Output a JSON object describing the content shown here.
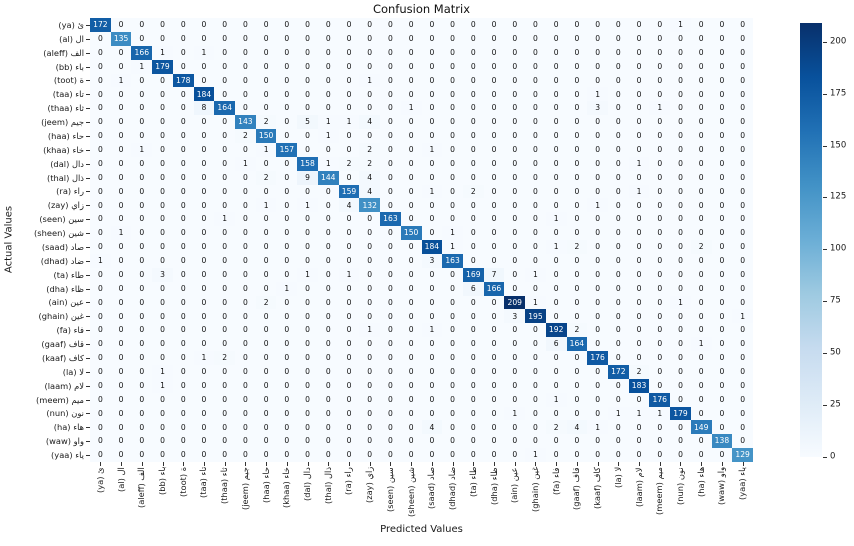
{
  "title": "Confusion Matrix",
  "xlabel": "Predicted Values",
  "ylabel": "Actual Values",
  "chart_data": {
    "type": "heatmap",
    "title": "Confusion Matrix",
    "xlabel": "Predicted Values",
    "ylabel": "Actual Values",
    "colormap": "Blues",
    "vmin": 0,
    "vmax": 209,
    "grid": false,
    "legend_position": "right-colorbar",
    "colorbar_ticks": [
      0,
      25,
      50,
      75,
      100,
      125,
      150,
      175,
      200
    ],
    "classes": [
      {
        "ar": "ئ",
        "en": "ya"
      },
      {
        "ar": "ال",
        "en": "al"
      },
      {
        "ar": "الف",
        "en": "aleff"
      },
      {
        "ar": "باء",
        "en": "bb"
      },
      {
        "ar": "ة",
        "en": "toot"
      },
      {
        "ar": "تاء",
        "en": "taa"
      },
      {
        "ar": "ثاء",
        "en": "thaa"
      },
      {
        "ar": "جيم",
        "en": "jeem"
      },
      {
        "ar": "حاء",
        "en": "haa"
      },
      {
        "ar": "خاء",
        "en": "khaa"
      },
      {
        "ar": "دال",
        "en": "dal"
      },
      {
        "ar": "ذال",
        "en": "thal"
      },
      {
        "ar": "راء",
        "en": "ra"
      },
      {
        "ar": "زاي",
        "en": "zay"
      },
      {
        "ar": "سين",
        "en": "seen"
      },
      {
        "ar": "شين",
        "en": "sheen"
      },
      {
        "ar": "صاد",
        "en": "saad"
      },
      {
        "ar": "ضاد",
        "en": "dhad"
      },
      {
        "ar": "طاء",
        "en": "ta"
      },
      {
        "ar": "ظاء",
        "en": "dha"
      },
      {
        "ar": "عين",
        "en": "ain"
      },
      {
        "ar": "غين",
        "en": "ghain"
      },
      {
        "ar": "فاء",
        "en": "fa"
      },
      {
        "ar": "قاف",
        "en": "gaaf"
      },
      {
        "ar": "كاف",
        "en": "kaaf"
      },
      {
        "ar": "لا",
        "en": "la"
      },
      {
        "ar": "لام",
        "en": "laam"
      },
      {
        "ar": "ميم",
        "en": "meem"
      },
      {
        "ar": "نون",
        "en": "nun"
      },
      {
        "ar": "هاء",
        "en": "ha"
      },
      {
        "ar": "واو",
        "en": "waw"
      },
      {
        "ar": "ياء",
        "en": "yaa"
      }
    ],
    "matrix": [
      [
        172,
        0,
        0,
        0,
        0,
        0,
        0,
        0,
        0,
        0,
        0,
        0,
        0,
        0,
        0,
        0,
        0,
        0,
        0,
        0,
        0,
        0,
        0,
        0,
        0,
        0,
        0,
        0,
        1,
        0,
        0,
        0
      ],
      [
        0,
        135,
        0,
        0,
        0,
        0,
        0,
        0,
        0,
        0,
        0,
        0,
        0,
        0,
        0,
        0,
        0,
        0,
        0,
        0,
        0,
        0,
        0,
        0,
        0,
        0,
        0,
        0,
        0,
        0,
        0,
        0
      ],
      [
        0,
        0,
        166,
        1,
        0,
        1,
        0,
        0,
        0,
        0,
        0,
        0,
        0,
        0,
        0,
        0,
        0,
        0,
        0,
        0,
        0,
        0,
        0,
        0,
        0,
        0,
        0,
        0,
        0,
        0,
        0,
        0
      ],
      [
        0,
        0,
        1,
        179,
        0,
        0,
        0,
        0,
        0,
        0,
        0,
        0,
        0,
        0,
        0,
        0,
        0,
        0,
        0,
        0,
        0,
        0,
        0,
        0,
        0,
        0,
        0,
        0,
        0,
        0,
        0,
        0
      ],
      [
        0,
        1,
        0,
        0,
        178,
        0,
        0,
        0,
        0,
        0,
        0,
        0,
        0,
        1,
        0,
        0,
        0,
        0,
        0,
        0,
        0,
        0,
        0,
        0,
        0,
        0,
        0,
        0,
        0,
        0,
        0,
        0
      ],
      [
        0,
        0,
        0,
        0,
        0,
        184,
        0,
        0,
        0,
        0,
        0,
        0,
        0,
        0,
        0,
        0,
        0,
        0,
        0,
        0,
        0,
        0,
        0,
        0,
        1,
        0,
        0,
        0,
        0,
        0,
        0,
        0
      ],
      [
        0,
        0,
        0,
        0,
        0,
        8,
        164,
        0,
        0,
        0,
        0,
        0,
        0,
        0,
        0,
        1,
        0,
        0,
        0,
        0,
        0,
        0,
        0,
        0,
        3,
        0,
        0,
        1,
        0,
        0,
        0,
        0
      ],
      [
        0,
        0,
        0,
        0,
        0,
        0,
        0,
        143,
        2,
        0,
        5,
        1,
        1,
        4,
        0,
        0,
        0,
        0,
        0,
        0,
        0,
        0,
        0,
        0,
        0,
        0,
        0,
        0,
        0,
        0,
        0,
        0
      ],
      [
        0,
        0,
        0,
        0,
        0,
        0,
        0,
        2,
        150,
        0,
        0,
        1,
        0,
        0,
        0,
        0,
        0,
        0,
        0,
        0,
        0,
        0,
        0,
        0,
        0,
        0,
        0,
        0,
        0,
        0,
        0,
        0
      ],
      [
        0,
        0,
        1,
        0,
        0,
        0,
        0,
        0,
        1,
        157,
        0,
        0,
        0,
        2,
        0,
        0,
        1,
        0,
        0,
        0,
        0,
        0,
        0,
        0,
        0,
        0,
        0,
        0,
        0,
        0,
        0,
        0
      ],
      [
        0,
        0,
        0,
        0,
        0,
        0,
        0,
        1,
        0,
        0,
        158,
        1,
        2,
        2,
        0,
        0,
        0,
        0,
        0,
        0,
        0,
        0,
        0,
        0,
        0,
        0,
        1,
        0,
        0,
        0,
        0,
        0
      ],
      [
        0,
        0,
        0,
        0,
        0,
        0,
        0,
        0,
        2,
        0,
        9,
        144,
        0,
        4,
        0,
        0,
        0,
        0,
        0,
        0,
        0,
        0,
        0,
        0,
        0,
        0,
        0,
        0,
        0,
        0,
        0,
        0
      ],
      [
        0,
        0,
        0,
        0,
        0,
        0,
        0,
        0,
        0,
        0,
        0,
        0,
        159,
        4,
        0,
        0,
        1,
        0,
        2,
        0,
        0,
        0,
        0,
        0,
        0,
        0,
        1,
        0,
        0,
        0,
        0,
        0
      ],
      [
        0,
        0,
        0,
        0,
        0,
        0,
        0,
        0,
        1,
        0,
        1,
        0,
        4,
        132,
        0,
        0,
        0,
        0,
        0,
        0,
        0,
        0,
        0,
        0,
        1,
        0,
        0,
        0,
        0,
        0,
        0,
        0
      ],
      [
        0,
        0,
        0,
        0,
        0,
        0,
        1,
        0,
        0,
        0,
        0,
        0,
        0,
        0,
        163,
        0,
        0,
        0,
        0,
        0,
        0,
        0,
        1,
        0,
        0,
        0,
        0,
        0,
        0,
        0,
        0,
        0
      ],
      [
        0,
        1,
        0,
        0,
        0,
        0,
        0,
        0,
        0,
        0,
        0,
        0,
        0,
        0,
        0,
        150,
        0,
        1,
        0,
        0,
        0,
        0,
        0,
        0,
        0,
        0,
        0,
        0,
        0,
        0,
        0,
        0
      ],
      [
        0,
        0,
        0,
        0,
        0,
        0,
        0,
        0,
        0,
        0,
        0,
        0,
        0,
        0,
        0,
        0,
        184,
        1,
        0,
        0,
        0,
        0,
        1,
        2,
        0,
        0,
        0,
        0,
        0,
        2,
        0,
        0
      ],
      [
        1,
        0,
        0,
        0,
        0,
        0,
        0,
        0,
        0,
        0,
        0,
        0,
        0,
        0,
        0,
        0,
        3,
        163,
        0,
        0,
        0,
        0,
        0,
        0,
        0,
        0,
        0,
        0,
        0,
        0,
        0,
        0
      ],
      [
        0,
        0,
        0,
        3,
        0,
        0,
        0,
        0,
        0,
        0,
        1,
        0,
        1,
        0,
        0,
        0,
        0,
        0,
        169,
        7,
        0,
        1,
        0,
        0,
        0,
        0,
        0,
        0,
        0,
        0,
        0,
        0
      ],
      [
        0,
        0,
        0,
        0,
        0,
        0,
        0,
        0,
        0,
        1,
        0,
        0,
        0,
        0,
        0,
        0,
        0,
        0,
        6,
        166,
        0,
        0,
        0,
        0,
        0,
        0,
        0,
        0,
        0,
        0,
        0,
        0
      ],
      [
        0,
        0,
        0,
        0,
        0,
        0,
        0,
        0,
        2,
        0,
        0,
        0,
        0,
        0,
        0,
        0,
        0,
        0,
        0,
        0,
        209,
        1,
        0,
        0,
        0,
        0,
        0,
        0,
        1,
        0,
        0,
        0
      ],
      [
        0,
        0,
        0,
        0,
        0,
        0,
        0,
        0,
        0,
        0,
        0,
        0,
        0,
        0,
        0,
        0,
        0,
        0,
        0,
        0,
        3,
        195,
        0,
        0,
        0,
        0,
        0,
        0,
        0,
        0,
        0,
        1
      ],
      [
        0,
        0,
        0,
        0,
        0,
        0,
        0,
        0,
        0,
        0,
        0,
        0,
        0,
        1,
        0,
        0,
        1,
        0,
        0,
        0,
        0,
        0,
        192,
        2,
        0,
        0,
        0,
        0,
        0,
        0,
        0,
        0
      ],
      [
        0,
        0,
        0,
        0,
        0,
        0,
        0,
        0,
        0,
        0,
        0,
        0,
        0,
        0,
        0,
        0,
        0,
        0,
        0,
        0,
        0,
        0,
        6,
        164,
        0,
        0,
        0,
        0,
        0,
        1,
        0,
        0
      ],
      [
        0,
        0,
        0,
        0,
        0,
        1,
        2,
        0,
        0,
        0,
        0,
        0,
        0,
        0,
        0,
        0,
        0,
        0,
        0,
        0,
        0,
        0,
        0,
        0,
        176,
        0,
        0,
        0,
        0,
        0,
        0,
        0
      ],
      [
        0,
        0,
        0,
        1,
        0,
        0,
        0,
        0,
        0,
        0,
        0,
        0,
        0,
        0,
        0,
        0,
        0,
        0,
        0,
        0,
        0,
        0,
        0,
        0,
        0,
        172,
        2,
        0,
        0,
        0,
        0,
        0
      ],
      [
        0,
        0,
        0,
        1,
        0,
        0,
        0,
        0,
        0,
        0,
        0,
        0,
        0,
        0,
        0,
        0,
        0,
        0,
        0,
        0,
        0,
        0,
        0,
        0,
        0,
        0,
        183,
        0,
        0,
        0,
        0,
        0
      ],
      [
        0,
        0,
        0,
        0,
        0,
        0,
        0,
        0,
        0,
        0,
        0,
        0,
        0,
        0,
        0,
        0,
        0,
        0,
        0,
        0,
        0,
        0,
        1,
        0,
        0,
        0,
        0,
        176,
        0,
        0,
        0,
        0
      ],
      [
        0,
        0,
        0,
        0,
        0,
        0,
        0,
        0,
        0,
        0,
        0,
        0,
        0,
        0,
        0,
        0,
        0,
        0,
        0,
        0,
        1,
        0,
        0,
        0,
        0,
        1,
        1,
        1,
        179,
        0,
        0,
        0
      ],
      [
        0,
        0,
        0,
        0,
        0,
        0,
        0,
        0,
        0,
        0,
        0,
        0,
        0,
        0,
        0,
        0,
        4,
        0,
        0,
        0,
        0,
        0,
        2,
        4,
        1,
        0,
        0,
        0,
        0,
        149,
        0,
        0
      ],
      [
        0,
        0,
        0,
        0,
        0,
        0,
        0,
        0,
        0,
        0,
        0,
        0,
        0,
        0,
        0,
        0,
        0,
        0,
        0,
        0,
        0,
        0,
        0,
        0,
        0,
        0,
        0,
        0,
        0,
        0,
        138,
        0
      ],
      [
        0,
        0,
        0,
        0,
        0,
        0,
        0,
        0,
        0,
        0,
        0,
        0,
        0,
        0,
        0,
        0,
        0,
        0,
        0,
        0,
        0,
        1,
        0,
        0,
        0,
        0,
        0,
        0,
        0,
        0,
        0,
        129
      ]
    ],
    "colormap_anchors": [
      {
        "pos": 0.0,
        "hex": "#f7fbff"
      },
      {
        "pos": 0.125,
        "hex": "#deebf7"
      },
      {
        "pos": 0.25,
        "hex": "#c6dbef"
      },
      {
        "pos": 0.375,
        "hex": "#9ecae1"
      },
      {
        "pos": 0.5,
        "hex": "#6baed6"
      },
      {
        "pos": 0.625,
        "hex": "#4292c6"
      },
      {
        "pos": 0.75,
        "hex": "#2171b5"
      },
      {
        "pos": 0.875,
        "hex": "#08519c"
      },
      {
        "pos": 1.0,
        "hex": "#08306b"
      }
    ],
    "annotation_text_colors": {
      "light_cells": "#111111",
      "dark_cells": "#ffffff"
    }
  }
}
